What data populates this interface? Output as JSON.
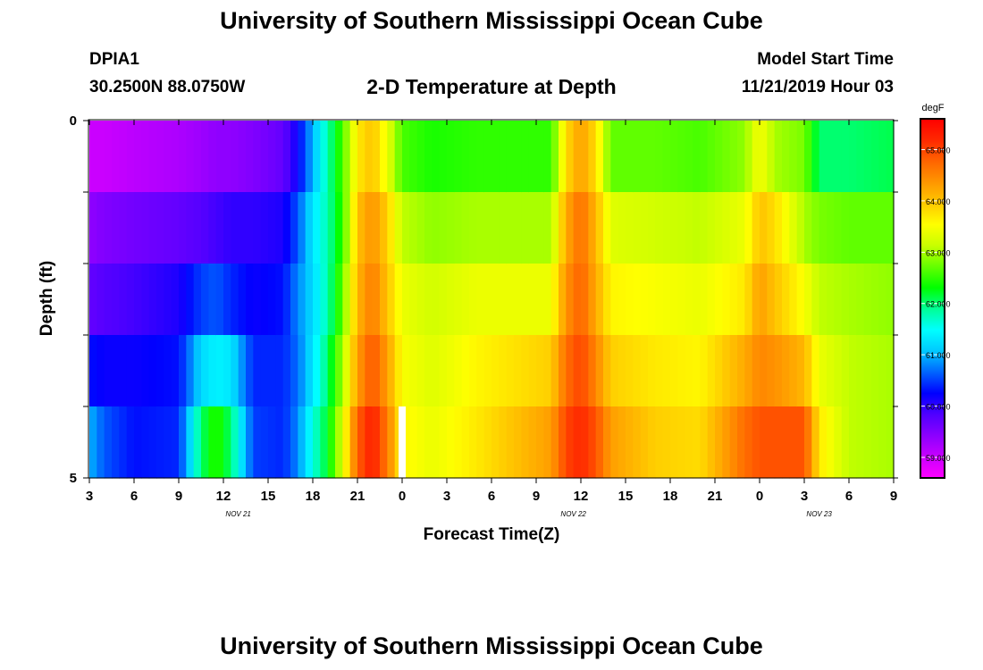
{
  "header": {
    "title": "University of Southern Mississippi Ocean Cube",
    "station": "DPIA1",
    "location": "30.2500N 88.0750W",
    "plot_title": "2-D Temperature at Depth",
    "model_start_label": "Model Start Time",
    "model_start_value": "11/21/2019 Hour 03"
  },
  "footer": {
    "title": "University of Southern Mississippi Ocean Cube"
  },
  "chart_data": {
    "type": "heatmap",
    "xlabel": "Forecast Time(Z)",
    "ylabel": "Depth (ft)",
    "colorbar_unit": "degF",
    "x_hours": [
      0,
      54
    ],
    "x_tick_labels": [
      "3",
      "6",
      "9",
      "12",
      "15",
      "18",
      "21",
      "0",
      "3",
      "6",
      "9",
      "12",
      "15",
      "18",
      "21",
      "0",
      "3",
      "6",
      "9"
    ],
    "date_labels": [
      {
        "text": "NOV  21",
        "hour": 10
      },
      {
        "text": "NOV  22",
        "hour": 32.5
      },
      {
        "text": "NOV  23",
        "hour": 49
      }
    ],
    "y_tick_labels": [
      "0",
      "5"
    ],
    "ylim": [
      0,
      5
    ],
    "colorbar_ticks": [
      "59.000",
      "60.000",
      "61.000",
      "62.000",
      "63.000",
      "64.000",
      "65.000"
    ],
    "colorbar_range": [
      58.6,
      65.6
    ],
    "colormap": [
      "#ff00ff",
      "#c800ff",
      "#8c00ff",
      "#5000ff",
      "#0000ff",
      "#0064ff",
      "#00c8ff",
      "#00ffff",
      "#00ff96",
      "#00ff00",
      "#64ff00",
      "#c8ff00",
      "#ffff00",
      "#ffc800",
      "#ff9600",
      "#ff6400",
      "#ff2800",
      "#ff0000"
    ],
    "depth_layers": [
      0.5,
      1.5,
      2.5,
      3.5,
      4.5
    ],
    "keyframes": [
      {
        "hour": 0,
        "t": [
          59.0,
          59.4,
          59.7,
          60.3,
          61.0
        ]
      },
      {
        "hour": 1,
        "t": [
          59.0,
          59.5,
          59.8,
          60.2,
          60.6
        ]
      },
      {
        "hour": 3,
        "t": [
          59.1,
          59.6,
          59.9,
          60.2,
          60.3
        ]
      },
      {
        "hour": 6,
        "t": [
          59.2,
          59.7,
          60.1,
          60.3,
          60.4
        ]
      },
      {
        "hour": 7.5,
        "t": [
          59.3,
          59.8,
          60.5,
          61.2,
          62.0
        ]
      },
      {
        "hour": 8.5,
        "t": [
          59.4,
          59.9,
          60.6,
          61.4,
          62.5
        ]
      },
      {
        "hour": 9.5,
        "t": [
          59.4,
          60.0,
          60.4,
          61.3,
          62.0
        ]
      },
      {
        "hour": 11,
        "t": [
          59.5,
          60.0,
          60.2,
          60.4,
          60.5
        ]
      },
      {
        "hour": 13,
        "t": [
          59.7,
          60.1,
          60.3,
          60.4,
          60.4
        ]
      },
      {
        "hour": 14,
        "t": [
          60.2,
          60.6,
          60.8,
          60.7,
          60.8
        ]
      },
      {
        "hour": 15,
        "t": [
          61.0,
          61.3,
          61.2,
          61.3,
          61.6
        ]
      },
      {
        "hour": 16,
        "t": [
          61.8,
          61.8,
          61.8,
          62.0,
          62.2
        ]
      },
      {
        "hour": 17,
        "t": [
          62.6,
          62.5,
          62.7,
          63.0,
          63.3
        ]
      },
      {
        "hour": 18,
        "t": [
          63.7,
          64.0,
          64.1,
          64.3,
          64.8
        ]
      },
      {
        "hour": 19,
        "t": [
          64.0,
          64.4,
          64.6,
          64.9,
          65.3
        ]
      },
      {
        "hour": 20,
        "t": [
          63.4,
          63.9,
          64.0,
          64.3,
          64.6
        ]
      },
      {
        "hour": 21,
        "t": [
          62.6,
          63.1,
          63.4,
          63.5,
          63.6
        ]
      },
      {
        "hour": 23,
        "t": [
          62.4,
          62.9,
          63.2,
          63.3,
          63.4
        ]
      },
      {
        "hour": 26,
        "t": [
          62.5,
          63.0,
          63.4,
          63.6,
          63.7
        ]
      },
      {
        "hour": 31,
        "t": [
          62.5,
          63.0,
          63.4,
          63.9,
          64.3
        ]
      },
      {
        "hour": 32,
        "t": [
          63.8,
          64.2,
          64.4,
          64.7,
          65.0
        ]
      },
      {
        "hour": 33,
        "t": [
          64.3,
          64.7,
          64.8,
          65.0,
          65.2
        ]
      },
      {
        "hour": 34,
        "t": [
          63.8,
          64.1,
          64.2,
          64.5,
          64.9
        ]
      },
      {
        "hour": 35,
        "t": [
          62.7,
          63.3,
          63.6,
          63.9,
          64.3
        ]
      },
      {
        "hour": 38,
        "t": [
          62.7,
          63.2,
          63.5,
          63.7,
          63.9
        ]
      },
      {
        "hour": 41,
        "t": [
          62.6,
          63.1,
          63.4,
          63.6,
          63.8
        ]
      },
      {
        "hour": 44,
        "t": [
          62.9,
          63.4,
          63.7,
          64.2,
          64.7
        ]
      },
      {
        "hour": 45,
        "t": [
          63.5,
          64.0,
          64.3,
          64.5,
          64.9
        ]
      },
      {
        "hour": 46,
        "t": [
          63.0,
          63.8,
          64.0,
          64.4,
          64.9
        ]
      },
      {
        "hour": 48,
        "t": [
          62.8,
          63.0,
          63.5,
          64.1,
          64.9
        ]
      },
      {
        "hour": 49,
        "t": [
          62.0,
          62.8,
          63.1,
          63.4,
          63.7
        ]
      },
      {
        "hour": 51,
        "t": [
          62.0,
          62.7,
          63.0,
          63.1,
          63.1
        ]
      },
      {
        "hour": 54,
        "t": [
          62.1,
          62.7,
          62.9,
          63.0,
          63.0
        ]
      }
    ],
    "missing_cell": {
      "hour": 21,
      "depth_layer": 4.5
    }
  }
}
